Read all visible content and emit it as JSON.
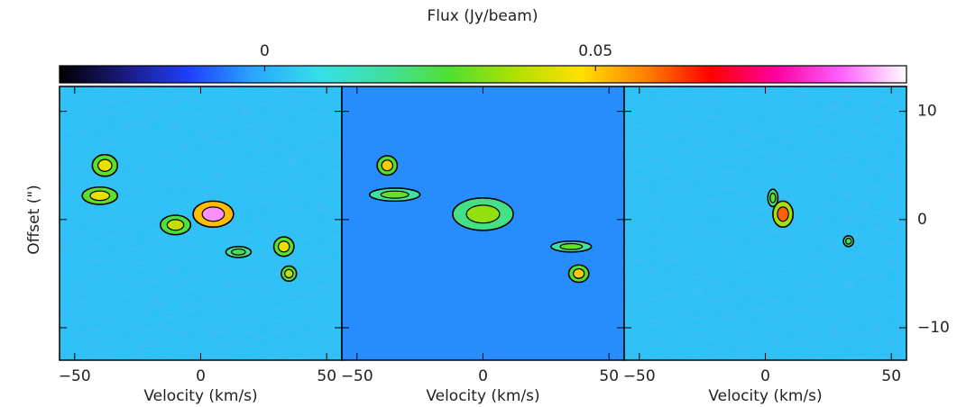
{
  "chart_data": {
    "type": "heatmap",
    "colorbar": {
      "title": "Flux (Jy/beam)",
      "lim": [
        -0.031,
        0.097
      ],
      "ticks": [
        0,
        0.05
      ],
      "colors": [
        "#000000",
        "#1a1a80",
        "#2040ff",
        "#2aa8ff",
        "#33e0e8",
        "#40e0a0",
        "#50e030",
        "#b0e000",
        "#ffe000",
        "#ff8000",
        "#ff0000",
        "#ff00a0",
        "#ff60ff",
        "#ffffff"
      ]
    },
    "xlabel": "Velocity (km/s)",
    "ylabel": "Offset (\")",
    "xlim": [
      -56,
      56
    ],
    "ylim": [
      -13,
      12.3
    ],
    "xticks": [
      {
        "value": -50,
        "label": "−50"
      },
      0,
      50
    ],
    "yticks": [
      10,
      0,
      {
        "value": -10,
        "label": "−10"
      }
    ],
    "panels": [
      {
        "background": 0.003,
        "features": [
          {
            "x": -38,
            "y": 5,
            "rx": 5,
            "ry": 1,
            "peak": 0.045
          },
          {
            "x": -40,
            "y": 2.2,
            "rx": 7,
            "ry": 0.8,
            "peak": 0.045
          },
          {
            "x": -10,
            "y": -0.5,
            "rx": 6,
            "ry": 0.9,
            "peak": 0.04
          },
          {
            "x": 5,
            "y": 0.5,
            "rx": 8,
            "ry": 1.2,
            "peak": 0.09
          },
          {
            "x": 33,
            "y": -2.5,
            "rx": 4,
            "ry": 0.9,
            "peak": 0.045
          },
          {
            "x": 35,
            "y": -5,
            "rx": 3,
            "ry": 0.7,
            "peak": 0.04
          },
          {
            "x": 15,
            "y": -3,
            "rx": 5,
            "ry": 0.5,
            "peak": 0.025
          }
        ]
      },
      {
        "background": -0.004,
        "features": [
          {
            "x": -38,
            "y": 5,
            "rx": 4,
            "ry": 0.9,
            "peak": 0.05
          },
          {
            "x": -35,
            "y": 2.3,
            "rx": 10,
            "ry": 0.6,
            "peak": 0.03
          },
          {
            "x": 0,
            "y": 0.5,
            "rx": 12,
            "ry": 1.5,
            "peak": 0.035
          },
          {
            "x": 35,
            "y": -2.5,
            "rx": 8,
            "ry": 0.5,
            "peak": 0.03
          },
          {
            "x": 38,
            "y": -5,
            "rx": 4,
            "ry": 0.8,
            "peak": 0.05
          }
        ]
      },
      {
        "background": 0.003,
        "features": [
          {
            "x": 7,
            "y": 0.5,
            "rx": 4,
            "ry": 1.2,
            "peak": 0.06
          },
          {
            "x": 3,
            "y": 2,
            "rx": 2,
            "ry": 0.8,
            "peak": 0.03
          },
          {
            "x": 33,
            "y": -2,
            "rx": 2,
            "ry": 0.5,
            "peak": 0.025
          }
        ]
      }
    ]
  }
}
